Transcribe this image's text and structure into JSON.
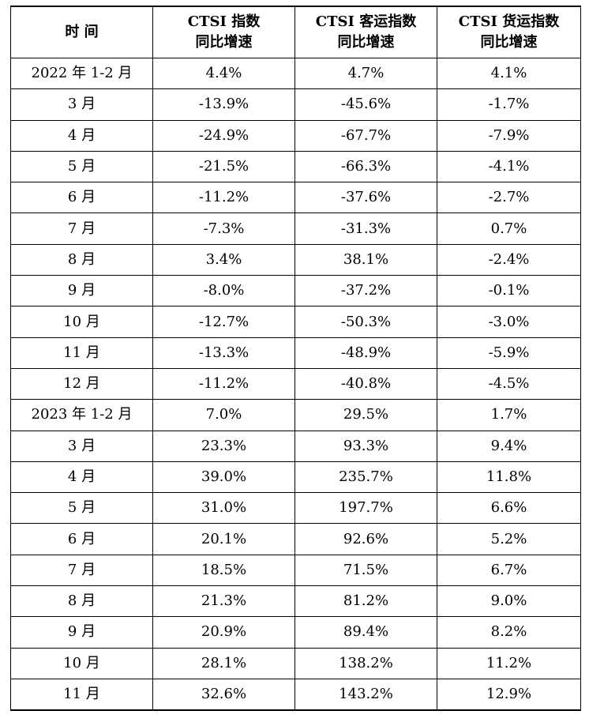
{
  "table": {
    "headers": [
      {
        "lines": [
          "时 间"
        ]
      },
      {
        "lines": [
          "CTSI 指数",
          "同比增速"
        ]
      },
      {
        "lines": [
          "CTSI 客运指数",
          "同比增速"
        ]
      },
      {
        "lines": [
          "CTSI 货运指数",
          "同比增速"
        ]
      }
    ],
    "rows": [
      [
        "2022 年 1-2 月",
        "4.4%",
        "4.7%",
        "4.1%"
      ],
      [
        "3 月",
        "-13.9%",
        "-45.6%",
        "-1.7%"
      ],
      [
        "4 月",
        "-24.9%",
        "-67.7%",
        "-7.9%"
      ],
      [
        "5 月",
        "-21.5%",
        "-66.3%",
        "-4.1%"
      ],
      [
        "6 月",
        "-11.2%",
        "-37.6%",
        "-2.7%"
      ],
      [
        "7 月",
        "-7.3%",
        "-31.3%",
        "0.7%"
      ],
      [
        "8 月",
        "3.4%",
        "38.1%",
        "-2.4%"
      ],
      [
        "9 月",
        "-8.0%",
        "-37.2%",
        "-0.1%"
      ],
      [
        "10 月",
        "-12.7%",
        "-50.3%",
        "-3.0%"
      ],
      [
        "11 月",
        "-13.3%",
        "-48.9%",
        "-5.9%"
      ],
      [
        "12 月",
        "-11.2%",
        "-40.8%",
        "-4.5%"
      ],
      [
        "2023 年 1-2 月",
        "7.0%",
        "29.5%",
        "1.7%"
      ],
      [
        "3 月",
        "23.3%",
        "93.3%",
        "9.4%"
      ],
      [
        "4 月",
        "39.0%",
        "235.7%",
        "11.8%"
      ],
      [
        "5 月",
        "31.0%",
        "197.7%",
        "6.6%"
      ],
      [
        "6 月",
        "20.1%",
        "92.6%",
        "5.2%"
      ],
      [
        "7 月",
        "18.5%",
        "71.5%",
        "6.7%"
      ],
      [
        "8 月",
        "21.3%",
        "81.2%",
        "9.0%"
      ],
      [
        "9 月",
        "20.9%",
        "89.4%",
        "8.2%"
      ],
      [
        "10 月",
        "28.1%",
        "138.2%",
        "11.2%"
      ],
      [
        "11 月",
        "32.6%",
        "143.2%",
        "12.9%"
      ]
    ]
  }
}
